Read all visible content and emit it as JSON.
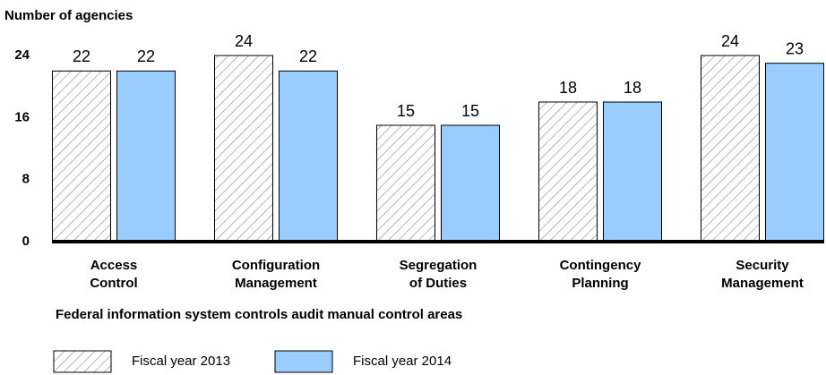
{
  "chart_data": {
    "type": "bar",
    "title": "Number of agencies",
    "x_label": "Federal information system controls audit manual control areas",
    "categories": [
      "Access Control",
      "Configuration Management",
      "Segregation of Duties",
      "Contingency Planning",
      "Security Management"
    ],
    "series": [
      {
        "name": "Fiscal year 2013",
        "color": "#ffffff",
        "hatch": true,
        "values": [
          22,
          24,
          15,
          18,
          24
        ]
      },
      {
        "name": "Fiscal year 2014",
        "color": "#99ccff",
        "hatch": false,
        "values": [
          22,
          22,
          15,
          18,
          23
        ]
      }
    ],
    "ylim": [
      0,
      24
    ],
    "yticks": [
      0,
      8,
      16,
      24
    ],
    "grid": false
  }
}
